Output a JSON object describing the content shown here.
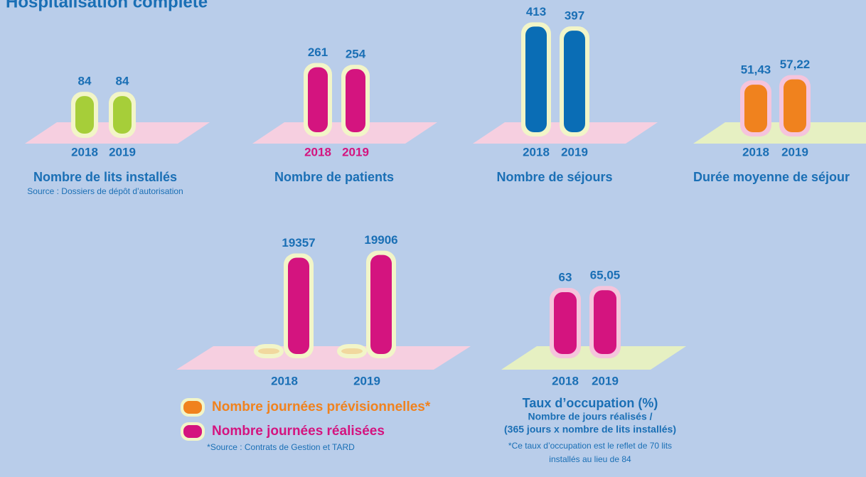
{
  "title": "Hospitalisation complète",
  "chart_data": [
    {
      "type": "bar",
      "title": "Nombre de lits installés",
      "subtitle": [
        "Source : Dossiers de dépôt d’autorisation"
      ],
      "categories": [
        "2018",
        "2019"
      ],
      "values": [
        84,
        84
      ],
      "color": "#a6ce39"
    },
    {
      "type": "bar",
      "title": "Nombre de patients",
      "categories": [
        "2018",
        "2019"
      ],
      "values": [
        261,
        254
      ],
      "color": "#d4147f"
    },
    {
      "type": "bar",
      "title": "Nombre de séjours",
      "categories": [
        "2018",
        "2019"
      ],
      "values": [
        413,
        397
      ],
      "color": "#0a6db5"
    },
    {
      "type": "bar",
      "title": "Durée moyenne de séjour",
      "categories": [
        "2018",
        "2019"
      ],
      "values": [
        51.43,
        57.22
      ],
      "value_labels": [
        "51,43",
        "57,22"
      ],
      "color": "#f0821e"
    },
    {
      "type": "grouped_bar",
      "categories": [
        "2018",
        "2019"
      ],
      "series": [
        {
          "name": "Nombre journées prévisionnelles*",
          "color": "#f0821e",
          "values": [
            0,
            0
          ]
        },
        {
          "name": "Nombre journées réalisées",
          "color": "#d4147f",
          "values": [
            19357,
            19906
          ]
        }
      ],
      "note": [
        "*Source : Contrats de Gestion et TARD"
      ]
    },
    {
      "type": "bar",
      "title": "Taux d’occupation (%)",
      "subtitle": [
        "Nombre de jours réalisés /",
        "(365 jours x nombre de lits installés)"
      ],
      "note": [
        "*Ce taux d’occupation est le reflet de 70 lits",
        "installés au lieu de 84"
      ],
      "categories": [
        "2018",
        "2019"
      ],
      "values": [
        63,
        65.05
      ],
      "value_labels": [
        "63",
        "65,05"
      ],
      "color": "#d4147f"
    }
  ]
}
